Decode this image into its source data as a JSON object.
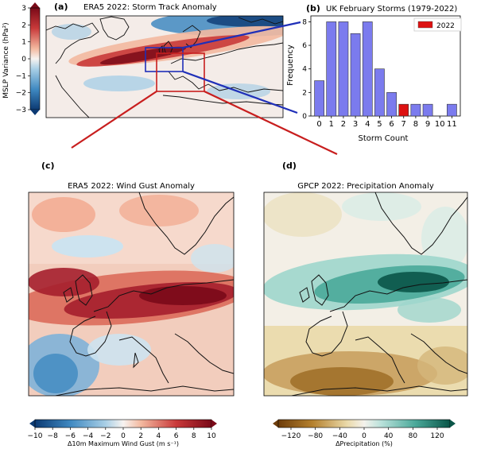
{
  "figure": {
    "connector_colors": {
      "blue": "#1f2fb8",
      "red": "#c81e1e"
    }
  },
  "panels": {
    "a": {
      "label": "(a)",
      "title": "ERA5 2022: Storm Track Anomaly",
      "colorbar": {
        "label": "MSLP Variance (hPa²)",
        "ticks": [
          "3",
          "2",
          "1",
          "0",
          "−1",
          "−2",
          "−3"
        ]
      }
    },
    "b": {
      "label": "(b)",
      "title": "UK February Storms (1979-2022)"
    },
    "c": {
      "label": "(c)",
      "title": "ERA5 2022: Wind Gust Anomaly",
      "colorbar": {
        "label": "Δ10m Maximum Wind Gust (m s⁻¹)",
        "ticks": [
          "−10",
          "−8",
          "−6",
          "−4",
          "−2",
          "0",
          "2",
          "4",
          "6",
          "8",
          "10"
        ]
      }
    },
    "d": {
      "label": "(d)",
      "title": "GPCP 2022: Precipitation Anomaly",
      "colorbar": {
        "label": "ΔPrecipitation (%)",
        "ticks": [
          "−120",
          "−80",
          "−40",
          "0",
          "40",
          "80",
          "120"
        ]
      }
    }
  },
  "chart_data": [
    {
      "panel": "b",
      "type": "bar",
      "title": "UK February Storms (1979-2022)",
      "xlabel": "Storm Count",
      "ylabel": "Frequency",
      "categories": [
        "0",
        "1",
        "2",
        "3",
        "4",
        "5",
        "6",
        "7",
        "8",
        "9",
        "10",
        "11"
      ],
      "series": [
        {
          "values": [
            3,
            8,
            8,
            7,
            8,
            4,
            2,
            0,
            1,
            1,
            0,
            1
          ],
          "color": "#7b7bee"
        },
        {
          "name": "2022",
          "values": [
            0,
            0,
            0,
            0,
            0,
            0,
            0,
            1,
            0,
            0,
            0,
            0
          ],
          "color": "#dd1111"
        }
      ],
      "yticks": [
        "0",
        "2",
        "4",
        "6",
        "8"
      ],
      "ylim": [
        0,
        8.5
      ],
      "legend": "top-right",
      "grid": false
    },
    {
      "panel": "a",
      "type": "heatmap",
      "title": "ERA5 2022: Storm Track Anomaly",
      "colorbar_range": [
        -3,
        3
      ]
    },
    {
      "panel": "c",
      "type": "heatmap",
      "title": "ERA5 2022: Wind Gust Anomaly",
      "colorbar_range": [
        -10,
        10
      ]
    },
    {
      "panel": "d",
      "type": "heatmap",
      "title": "GPCP 2022: Precipitation Anomaly",
      "colorbar_range": [
        -120,
        120
      ]
    }
  ]
}
